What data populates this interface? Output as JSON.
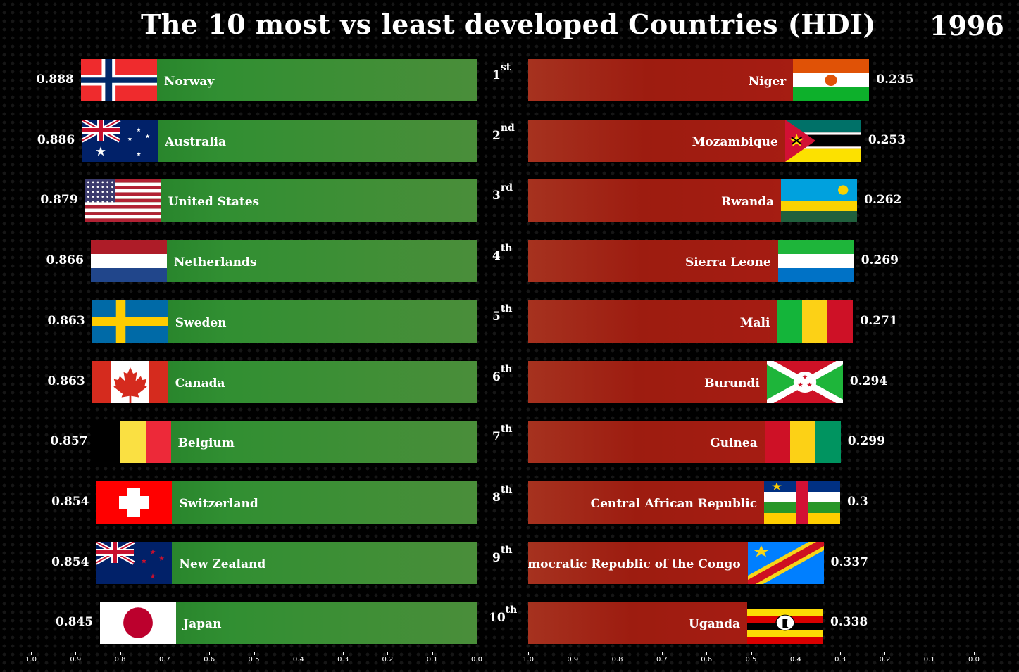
{
  "title": "The 10 most vs least developed Countries (HDI)",
  "year": "1996",
  "colors": {
    "most_bar": "#3a8f34",
    "least_bar": "#a01c12"
  },
  "chart_data": [
    {
      "type": "bar",
      "orientation": "horizontal",
      "direction": "right-to-left",
      "title": "The 10 most vs least developed Countries (HDI)",
      "categories": [
        "Norway",
        "Australia",
        "United States",
        "Netherlands",
        "Sweden",
        "Canada",
        "Belgium",
        "Switzerland",
        "New Zealand",
        "Japan"
      ],
      "values": [
        0.888,
        0.886,
        0.879,
        0.866,
        0.863,
        0.863,
        0.857,
        0.854,
        0.854,
        0.845
      ],
      "value_labels": [
        "0.888",
        "0.886",
        "0.879",
        "0.866",
        "0.863",
        "0.863",
        "0.857",
        "0.854",
        "0.854",
        "0.845"
      ],
      "flags": [
        "norway-flag",
        "australia-flag",
        "united-states-flag",
        "netherlands-flag",
        "sweden-flag",
        "canada-flag",
        "belgium-flag",
        "switzerland-flag",
        "new-zealand-flag",
        "japan-flag"
      ],
      "xlim": [
        1.0,
        0.0
      ],
      "xticks": [
        "1.0",
        "0.9",
        "0.8",
        "0.7",
        "0.6",
        "0.5",
        "0.4",
        "0.3",
        "0.2",
        "0.1",
        "0.0"
      ],
      "grid": false
    },
    {
      "type": "bar",
      "orientation": "horizontal",
      "direction": "left-to-right",
      "categories": [
        "Niger",
        "Mozambique",
        "Rwanda",
        "Sierra Leone",
        "Mali",
        "Burundi",
        "Guinea",
        "Central African Republic",
        "Democratic Republic of the Congo",
        "Uganda"
      ],
      "values": [
        0.235,
        0.253,
        0.262,
        0.269,
        0.271,
        0.294,
        0.299,
        0.3,
        0.337,
        0.338
      ],
      "value_labels": [
        "0.235",
        "0.253",
        "0.262",
        "0.269",
        "0.271",
        "0.294",
        "0.299",
        "0.3",
        "0.337",
        "0.338"
      ],
      "flags": [
        "niger-flag",
        "mozambique-flag",
        "rwanda-flag",
        "sierra-leone-flag",
        "mali-flag",
        "burundi-flag",
        "guinea-flag",
        "central-african-republic-flag",
        "dr-congo-flag",
        "uganda-flag"
      ],
      "xlim": [
        1.0,
        0.0
      ],
      "xticks": [
        "1.0",
        "0.9",
        "0.8",
        "0.7",
        "0.6",
        "0.5",
        "0.4",
        "0.3",
        "0.2",
        "0.1",
        "0.0"
      ],
      "grid": false
    }
  ],
  "ranks": [
    {
      "num": "1",
      "suffix": "st"
    },
    {
      "num": "2",
      "suffix": "nd"
    },
    {
      "num": "3",
      "suffix": "rd"
    },
    {
      "num": "4",
      "suffix": "th"
    },
    {
      "num": "5",
      "suffix": "th"
    },
    {
      "num": "6",
      "suffix": "th"
    },
    {
      "num": "7",
      "suffix": "th"
    },
    {
      "num": "8",
      "suffix": "th"
    },
    {
      "num": "9",
      "suffix": "th"
    },
    {
      "num": "10",
      "suffix": "th"
    }
  ]
}
